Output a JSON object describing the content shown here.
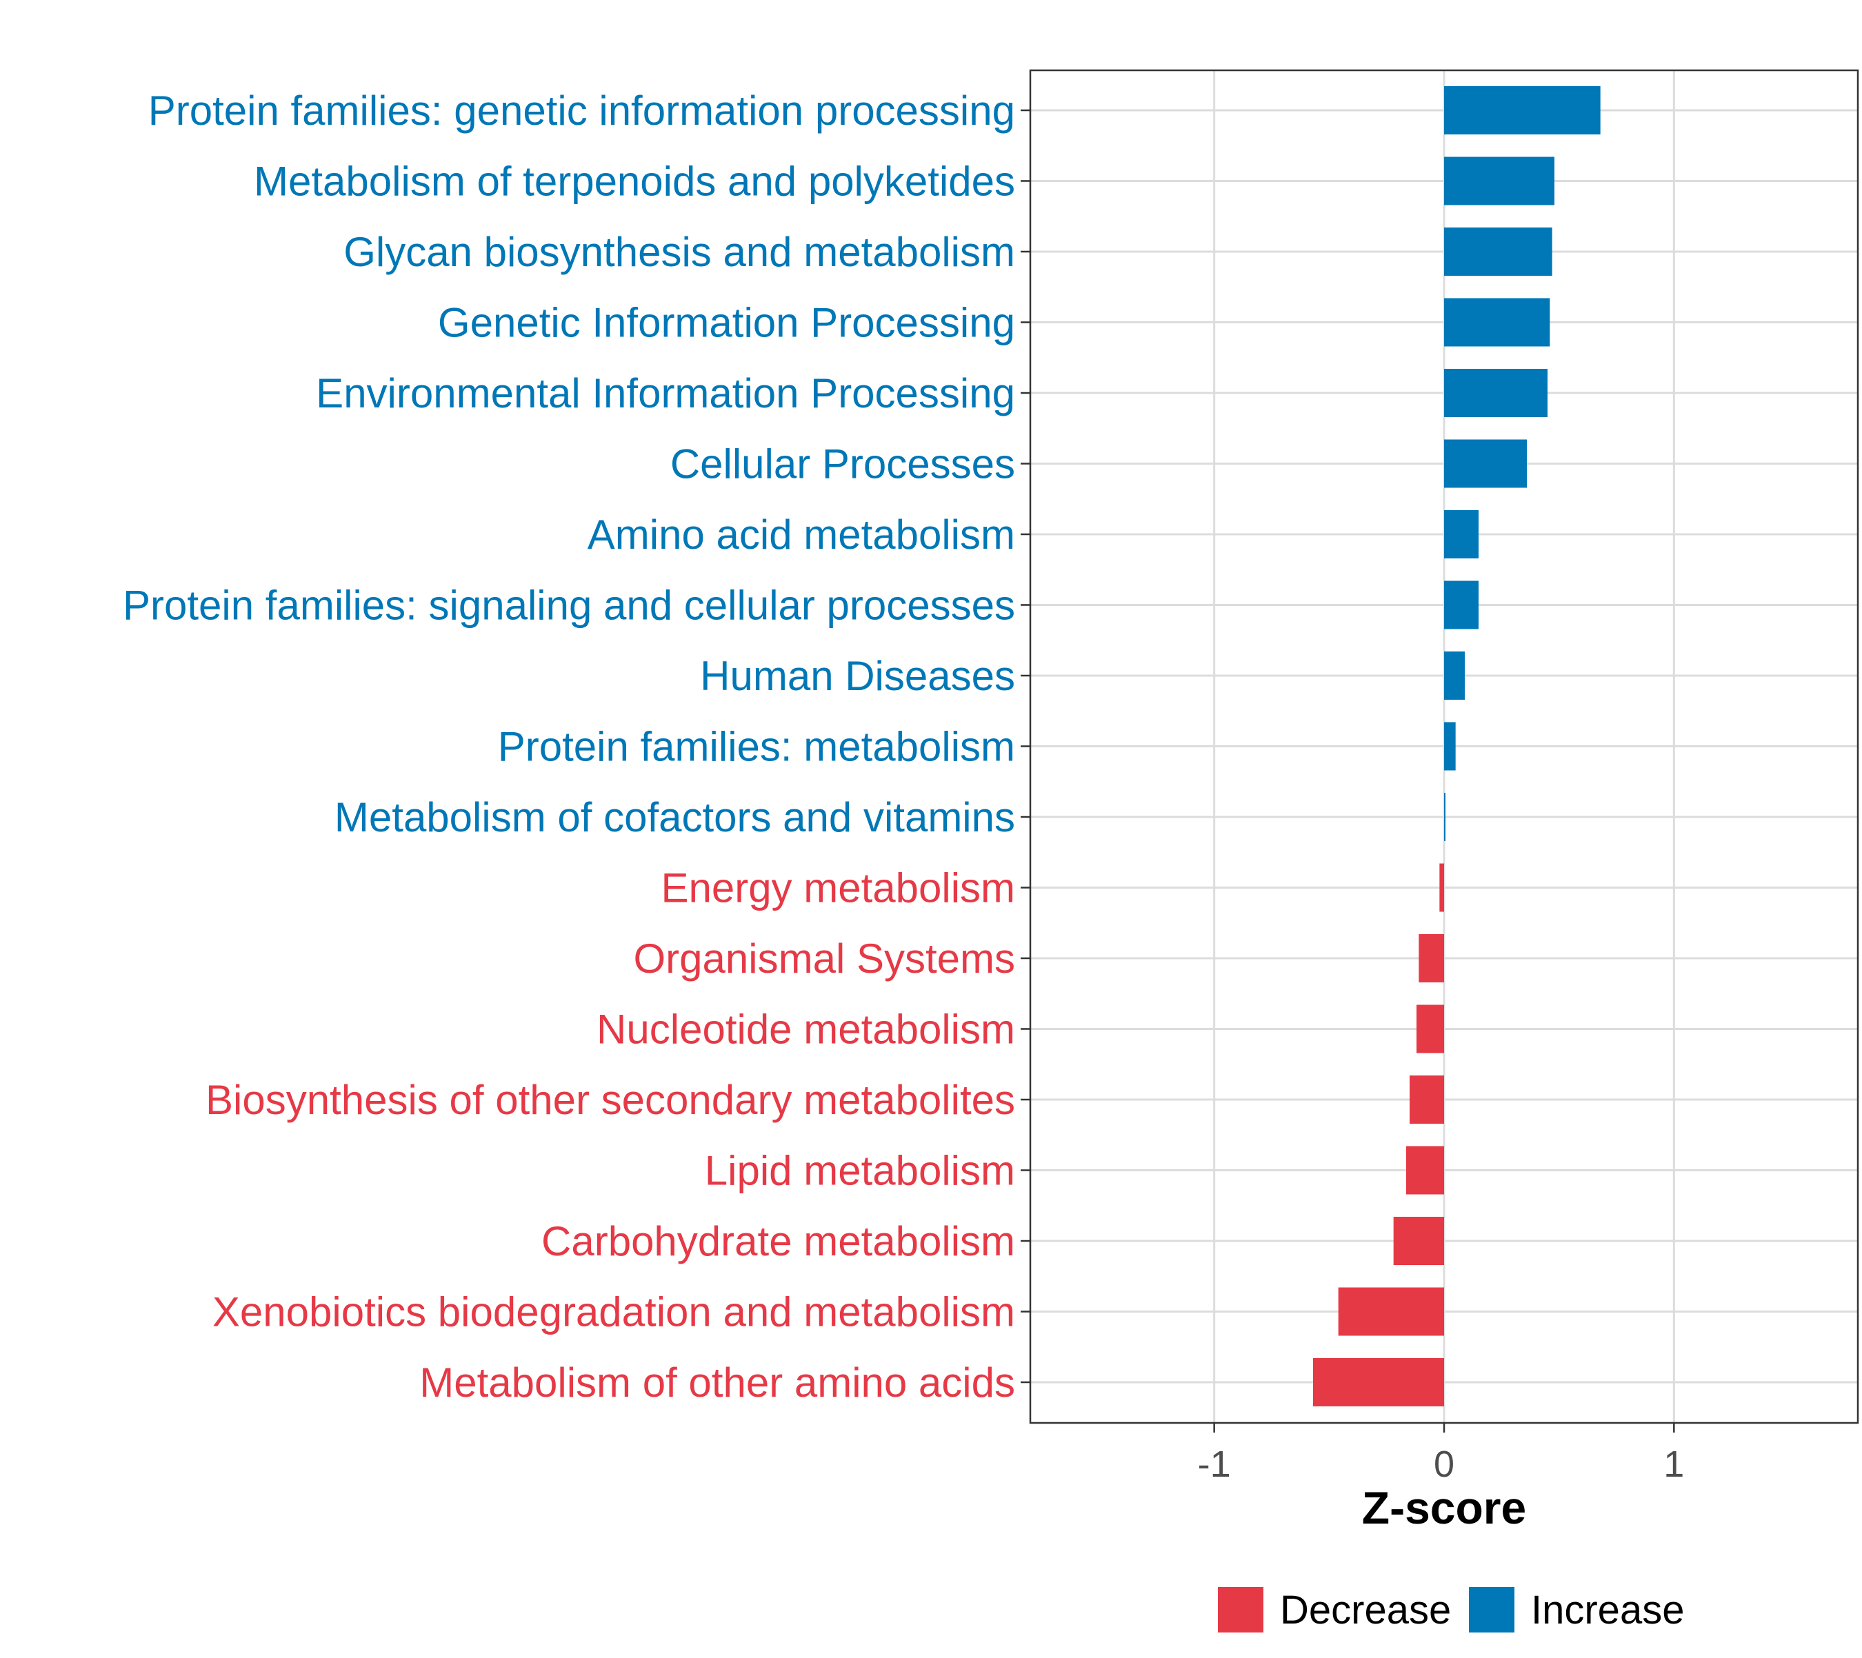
{
  "chart_data": {
    "type": "bar",
    "orientation": "horizontal",
    "xlabel": "Z-score",
    "xlim": [
      -1.8,
      1.8
    ],
    "xticks": [
      -1,
      0,
      1
    ],
    "xtick_labels": [
      "-1",
      "0",
      "1"
    ],
    "grid": true,
    "categories": [
      "Protein families: genetic information processing",
      "Metabolism of terpenoids and polyketides",
      "Glycan biosynthesis and metabolism",
      "Genetic Information Processing",
      "Environmental Information Processing",
      "Cellular Processes",
      "Amino acid metabolism",
      "Protein families: signaling and cellular processes",
      "Human Diseases",
      "Protein families: metabolism",
      "Metabolism of cofactors and vitamins",
      "Energy metabolism",
      "Organismal Systems",
      "Nucleotide metabolism",
      "Biosynthesis of other secondary metabolites",
      "Lipid metabolism",
      "Carbohydrate metabolism",
      "Xenobiotics biodegradation and metabolism",
      "Metabolism of other amino acids"
    ],
    "values": [
      0.68,
      0.48,
      0.47,
      0.46,
      0.45,
      0.36,
      0.15,
      0.15,
      0.09,
      0.05,
      0.005,
      -0.02,
      -0.11,
      -0.12,
      -0.15,
      -0.165,
      -0.22,
      -0.46,
      -0.57
    ],
    "groups": [
      "Increase",
      "Increase",
      "Increase",
      "Increase",
      "Increase",
      "Increase",
      "Increase",
      "Increase",
      "Increase",
      "Increase",
      "Increase",
      "Decrease",
      "Decrease",
      "Decrease",
      "Decrease",
      "Decrease",
      "Decrease",
      "Decrease",
      "Decrease"
    ],
    "legend": {
      "position": "bottom",
      "entries": [
        {
          "label": "Decrease",
          "color": "#E63946"
        },
        {
          "label": "Increase",
          "color": "#0077B6"
        }
      ]
    }
  }
}
